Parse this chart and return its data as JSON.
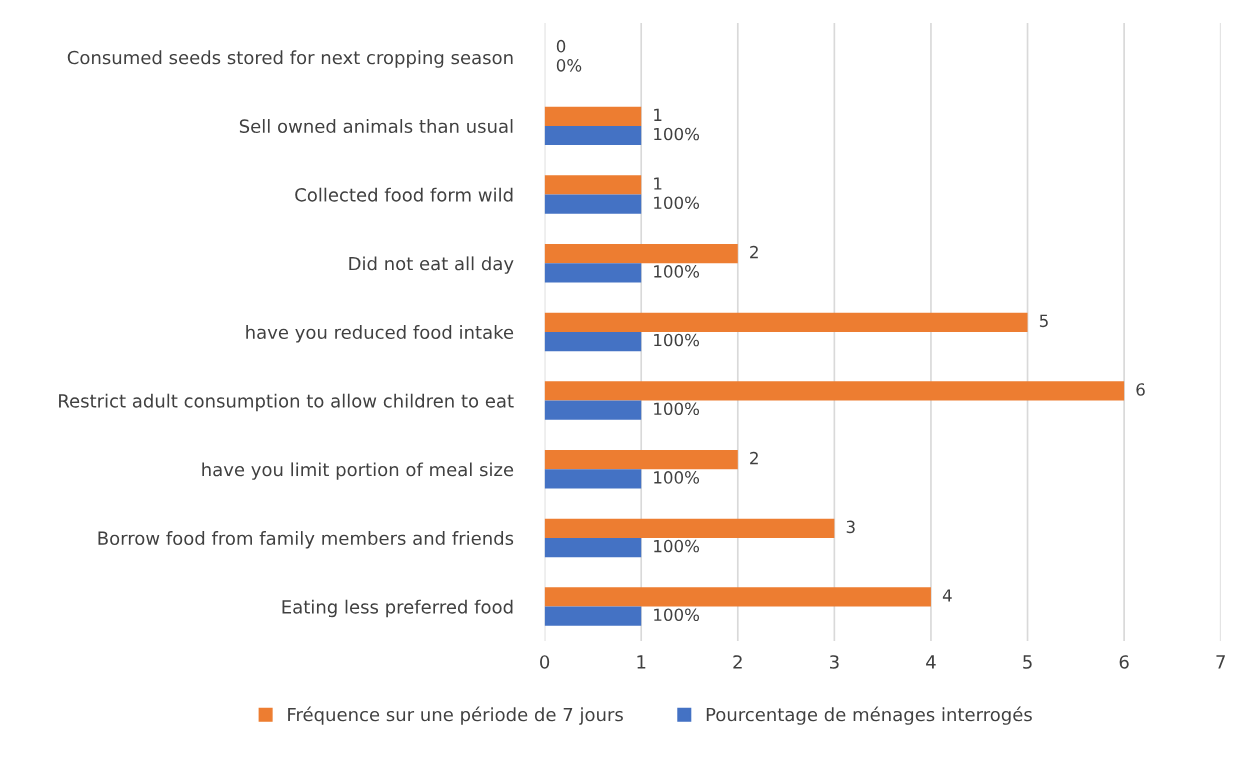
{
  "chart_data": {
    "type": "bar",
    "orientation": "horizontal",
    "categories": [
      "Consumed seeds stored for next cropping season",
      "Sell owned animals than usual",
      "Collected food form wild",
      "Did not eat all day",
      "have you reduced food intake",
      "Restrict adult consumption to allow children to eat",
      "have you limit portion of meal size",
      "Borrow food from family members and friends",
      "Eating less preferred food"
    ],
    "series": [
      {
        "name": "Fréquence sur une période de 7 jours",
        "color": "#ed7d31",
        "values": [
          0,
          1,
          1,
          2,
          5,
          6,
          2,
          3,
          4
        ],
        "value_labels": [
          "0",
          "1",
          "1",
          "2",
          "5",
          "6",
          "2",
          "3",
          "4"
        ]
      },
      {
        "name": "Pourcentage de ménages interrogés",
        "color": "#4472c4",
        "values": [
          0,
          1,
          1,
          1,
          1,
          1,
          1,
          1,
          1
        ],
        "value_labels": [
          "0%",
          "100%",
          "100%",
          "100%",
          "100%",
          "100%",
          "100%",
          "100%",
          "100%"
        ]
      }
    ],
    "xlim": [
      0,
      7
    ],
    "xticks": [
      0,
      1,
      2,
      3,
      4,
      5,
      6,
      7
    ],
    "grid": "x",
    "legend": "bottom"
  }
}
